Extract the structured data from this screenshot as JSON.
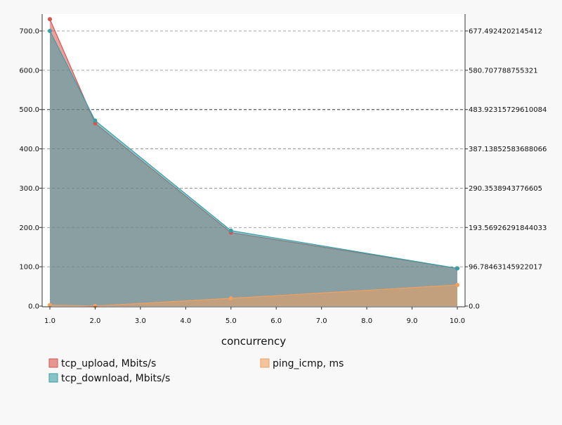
{
  "chart_data": {
    "type": "area",
    "xlabel": "concurrency",
    "x": [
      1,
      2,
      5,
      10
    ],
    "x_ticks": [
      "1.0",
      "2.0",
      "3.0",
      "4.0",
      "5.0",
      "6.0",
      "7.0",
      "8.0",
      "9.0",
      "10.0"
    ],
    "xlim": [
      1,
      10
    ],
    "left_axis": {
      "ylim": [
        0,
        700
      ],
      "ticks": [
        "0.0",
        "100.0",
        "200.0",
        "300.0",
        "400.0",
        "500.0",
        "600.0",
        "700.0"
      ]
    },
    "right_axis": {
      "ylim": [
        0,
        677.4924202145412
      ],
      "ticks": [
        "0.0",
        "96.78463145922017",
        "193.56926291844033",
        "290.3538943776605",
        "387.13852583688066",
        "483.92315729610084",
        "580.707788755321",
        "677.4924202145412"
      ]
    },
    "grid": true,
    "legend_position": "bottom",
    "series": [
      {
        "name": "tcp_upload, Mbits/s",
        "axis": "left",
        "color": "#d9534f",
        "values": [
          730,
          465,
          187,
          96
        ]
      },
      {
        "name": "tcp_download, Mbits/s",
        "axis": "left",
        "color": "#3a9ea5",
        "values": [
          700,
          472,
          192,
          96
        ]
      },
      {
        "name": "ping_icmp, ms",
        "axis": "right",
        "color": "#f0a060",
        "values": [
          2.5,
          0.3,
          19,
          52
        ]
      }
    ]
  },
  "colors": {
    "background": "#f8f8f8",
    "plot_background": "#ffffff",
    "overlap_fill": "#7a8f92"
  }
}
